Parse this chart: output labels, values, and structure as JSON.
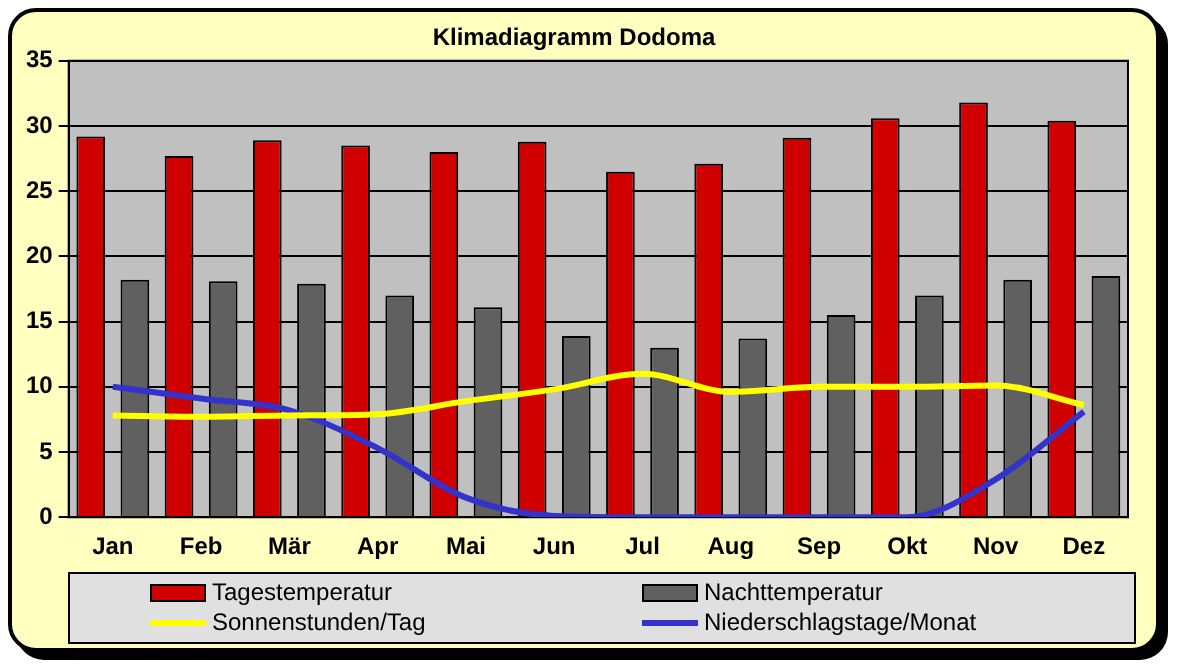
{
  "chart_data": {
    "type": "bar",
    "title": "Klimadiagramm Dodoma",
    "categories": [
      "Jan",
      "Feb",
      "Mär",
      "Apr",
      "Mai",
      "Jun",
      "Jul",
      "Aug",
      "Sep",
      "Okt",
      "Nov",
      "Dez"
    ],
    "series": [
      {
        "name": "Tagestemperatur",
        "color": "#d00000",
        "values": [
          29.2,
          27.7,
          28.9,
          28.5,
          28.0,
          28.8,
          26.5,
          27.1,
          29.1,
          30.6,
          31.8,
          30.4
        ]
      },
      {
        "name": "Nachttemperatur",
        "color": "#606060",
        "values": [
          18.2,
          18.1,
          17.9,
          17.0,
          16.1,
          13.9,
          13.0,
          13.7,
          15.5,
          17.0,
          18.2,
          18.5
        ]
      },
      {
        "name": "Sonnenstunden/Tag",
        "type": "line",
        "color": "#ffff00",
        "values": [
          7.8,
          7.7,
          7.8,
          7.9,
          8.9,
          9.8,
          11.0,
          9.6,
          10.0,
          10.0,
          10.1,
          8.6
        ]
      },
      {
        "name": "Niederschlagstage/Monat",
        "type": "line",
        "color": "#3333cc",
        "values": [
          10.0,
          9.1,
          8.2,
          5.3,
          1.5,
          0.1,
          0,
          0,
          0,
          0,
          2.9,
          8.1
        ]
      }
    ],
    "ylim": [
      0,
      35
    ],
    "yticks": [
      0,
      5,
      10,
      15,
      20,
      25,
      30,
      35
    ],
    "grid": "y",
    "legend": "bottom",
    "marker": "none"
  }
}
